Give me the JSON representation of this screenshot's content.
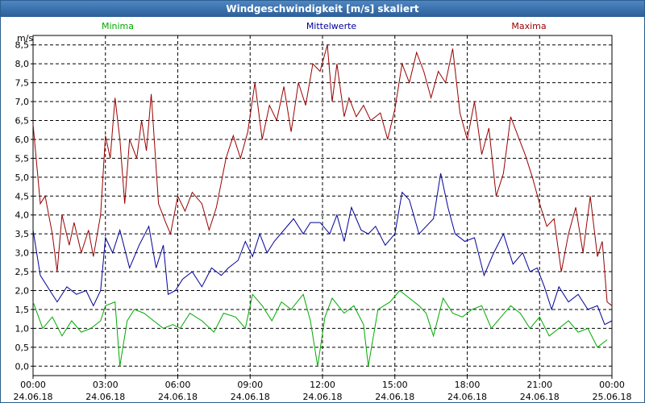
{
  "window": {
    "title": "Windgeschwindigkeit [m/s] skaliert"
  },
  "chart_data": {
    "type": "line",
    "title": "Windgeschwindigkeit [m/s] skaliert",
    "ylabel": "m/s",
    "ylim": [
      -0.25,
      8.75
    ],
    "yticks": [
      0,
      0.5,
      1,
      1.5,
      2,
      2.5,
      3,
      3.5,
      4,
      4.5,
      5,
      5.5,
      6,
      6.5,
      7,
      7.5,
      8,
      8.5
    ],
    "ytick_labels": [
      "0,0",
      "0,5",
      "1,0",
      "1,5",
      "2,0",
      "2,5",
      "3,0",
      "3,5",
      "4,0",
      "4,5",
      "5,0",
      "5,5",
      "6,0",
      "6,5",
      "7,0",
      "7,5",
      "8,0",
      "8,5"
    ],
    "xlim": [
      0,
      24
    ],
    "xticks": [
      0,
      3,
      6,
      9,
      12,
      15,
      18,
      21,
      24
    ],
    "xtick_labels": [
      {
        "time": "00:00",
        "date": "24.06.18"
      },
      {
        "time": "03:00",
        "date": "24.06.18"
      },
      {
        "time": "06:00",
        "date": "24.06.18"
      },
      {
        "time": "09:00",
        "date": "24.06.18"
      },
      {
        "time": "12:00",
        "date": "24.06.18"
      },
      {
        "time": "15:00",
        "date": "24.06.18"
      },
      {
        "time": "18:00",
        "date": "24.06.18"
      },
      {
        "time": "21:00",
        "date": "24.06.18"
      },
      {
        "time": "00:00",
        "date": "25.06.18"
      }
    ],
    "grid": true,
    "legend": "top",
    "series": [
      {
        "name": "Minima",
        "color": "#00aa00",
        "points": [
          [
            0.0,
            1.7
          ],
          [
            0.4,
            1.0
          ],
          [
            0.8,
            1.3
          ],
          [
            1.2,
            0.8
          ],
          [
            1.6,
            1.2
          ],
          [
            2.0,
            0.9
          ],
          [
            2.4,
            1.0
          ],
          [
            2.8,
            1.2
          ],
          [
            3.0,
            1.6
          ],
          [
            3.4,
            1.7
          ],
          [
            3.6,
            0.0
          ],
          [
            3.9,
            1.2
          ],
          [
            4.2,
            1.5
          ],
          [
            4.6,
            1.4
          ],
          [
            5.0,
            1.2
          ],
          [
            5.4,
            1.0
          ],
          [
            5.8,
            1.1
          ],
          [
            6.1,
            1.0
          ],
          [
            6.5,
            1.4
          ],
          [
            7.0,
            1.2
          ],
          [
            7.5,
            0.9
          ],
          [
            7.9,
            1.4
          ],
          [
            8.4,
            1.3
          ],
          [
            8.8,
            1.0
          ],
          [
            9.1,
            1.9
          ],
          [
            9.5,
            1.6
          ],
          [
            9.9,
            1.2
          ],
          [
            10.3,
            1.7
          ],
          [
            10.7,
            1.5
          ],
          [
            11.2,
            1.9
          ],
          [
            11.5,
            1.2
          ],
          [
            11.8,
            0.0
          ],
          [
            12.1,
            1.3
          ],
          [
            12.4,
            1.8
          ],
          [
            12.9,
            1.4
          ],
          [
            13.3,
            1.6
          ],
          [
            13.7,
            1.1
          ],
          [
            13.9,
            0.0
          ],
          [
            14.3,
            1.5
          ],
          [
            14.8,
            1.7
          ],
          [
            15.2,
            2.0
          ],
          [
            15.6,
            1.8
          ],
          [
            16.0,
            1.6
          ],
          [
            16.3,
            1.4
          ],
          [
            16.6,
            0.8
          ],
          [
            17.0,
            1.8
          ],
          [
            17.4,
            1.4
          ],
          [
            17.8,
            1.3
          ],
          [
            18.2,
            1.5
          ],
          [
            18.6,
            1.6
          ],
          [
            19.0,
            1.0
          ],
          [
            19.4,
            1.3
          ],
          [
            19.8,
            1.6
          ],
          [
            20.2,
            1.4
          ],
          [
            20.6,
            1.0
          ],
          [
            21.0,
            1.3
          ],
          [
            21.4,
            0.8
          ],
          [
            21.8,
            1.0
          ],
          [
            22.2,
            1.2
          ],
          [
            22.6,
            0.9
          ],
          [
            23.0,
            1.0
          ],
          [
            23.4,
            0.5
          ],
          [
            23.8,
            0.7
          ]
        ]
      },
      {
        "name": "Mittelwerte",
        "color": "#000099",
        "points": [
          [
            0.0,
            3.6
          ],
          [
            0.3,
            2.4
          ],
          [
            0.7,
            2.0
          ],
          [
            1.0,
            1.7
          ],
          [
            1.4,
            2.1
          ],
          [
            1.8,
            1.9
          ],
          [
            2.2,
            2.0
          ],
          [
            2.5,
            1.6
          ],
          [
            2.8,
            2.0
          ],
          [
            3.0,
            3.4
          ],
          [
            3.3,
            3.0
          ],
          [
            3.6,
            3.6
          ],
          [
            4.0,
            2.6
          ],
          [
            4.4,
            3.2
          ],
          [
            4.8,
            3.7
          ],
          [
            5.1,
            2.6
          ],
          [
            5.4,
            3.2
          ],
          [
            5.6,
            1.9
          ],
          [
            5.9,
            2.0
          ],
          [
            6.2,
            2.3
          ],
          [
            6.6,
            2.5
          ],
          [
            7.0,
            2.1
          ],
          [
            7.4,
            2.6
          ],
          [
            7.8,
            2.4
          ],
          [
            8.1,
            2.6
          ],
          [
            8.5,
            2.8
          ],
          [
            8.8,
            3.3
          ],
          [
            9.1,
            2.9
          ],
          [
            9.4,
            3.5
          ],
          [
            9.7,
            3.0
          ],
          [
            10.0,
            3.3
          ],
          [
            10.4,
            3.6
          ],
          [
            10.8,
            3.9
          ],
          [
            11.2,
            3.5
          ],
          [
            11.5,
            3.8
          ],
          [
            11.9,
            3.8
          ],
          [
            12.3,
            3.5
          ],
          [
            12.6,
            4.0
          ],
          [
            12.9,
            3.3
          ],
          [
            13.2,
            4.2
          ],
          [
            13.6,
            3.6
          ],
          [
            13.9,
            3.5
          ],
          [
            14.2,
            3.7
          ],
          [
            14.6,
            3.2
          ],
          [
            15.0,
            3.5
          ],
          [
            15.3,
            4.6
          ],
          [
            15.6,
            4.4
          ],
          [
            16.0,
            3.5
          ],
          [
            16.3,
            3.7
          ],
          [
            16.6,
            3.9
          ],
          [
            16.9,
            5.1
          ],
          [
            17.2,
            4.2
          ],
          [
            17.5,
            3.5
          ],
          [
            17.9,
            3.3
          ],
          [
            18.3,
            3.4
          ],
          [
            18.7,
            2.4
          ],
          [
            19.1,
            3.0
          ],
          [
            19.5,
            3.5
          ],
          [
            19.9,
            2.7
          ],
          [
            20.3,
            3.0
          ],
          [
            20.6,
            2.5
          ],
          [
            20.9,
            2.6
          ],
          [
            21.2,
            2.1
          ],
          [
            21.5,
            1.5
          ],
          [
            21.8,
            2.1
          ],
          [
            22.2,
            1.7
          ],
          [
            22.6,
            1.9
          ],
          [
            23.0,
            1.5
          ],
          [
            23.4,
            1.6
          ],
          [
            23.7,
            1.1
          ],
          [
            24.0,
            1.2
          ]
        ]
      },
      {
        "name": "Maxima",
        "color": "#990000",
        "points": [
          [
            0.0,
            6.4
          ],
          [
            0.3,
            4.3
          ],
          [
            0.5,
            4.5
          ],
          [
            0.8,
            3.5
          ],
          [
            1.0,
            2.5
          ],
          [
            1.2,
            4.0
          ],
          [
            1.5,
            3.2
          ],
          [
            1.7,
            3.8
          ],
          [
            2.0,
            3.0
          ],
          [
            2.3,
            3.6
          ],
          [
            2.5,
            2.9
          ],
          [
            2.8,
            4.0
          ],
          [
            3.0,
            6.1
          ],
          [
            3.2,
            5.5
          ],
          [
            3.4,
            7.1
          ],
          [
            3.6,
            6.0
          ],
          [
            3.8,
            4.3
          ],
          [
            4.0,
            6.0
          ],
          [
            4.3,
            5.5
          ],
          [
            4.5,
            6.5
          ],
          [
            4.7,
            5.7
          ],
          [
            4.9,
            7.2
          ],
          [
            5.2,
            4.3
          ],
          [
            5.5,
            3.8
          ],
          [
            5.7,
            3.5
          ],
          [
            6.0,
            4.5
          ],
          [
            6.3,
            4.1
          ],
          [
            6.6,
            4.6
          ],
          [
            7.0,
            4.3
          ],
          [
            7.3,
            3.6
          ],
          [
            7.6,
            4.2
          ],
          [
            8.0,
            5.5
          ],
          [
            8.3,
            6.1
          ],
          [
            8.6,
            5.5
          ],
          [
            8.9,
            6.2
          ],
          [
            9.2,
            7.5
          ],
          [
            9.5,
            6.0
          ],
          [
            9.8,
            6.9
          ],
          [
            10.1,
            6.5
          ],
          [
            10.4,
            7.4
          ],
          [
            10.7,
            6.2
          ],
          [
            11.0,
            7.5
          ],
          [
            11.3,
            6.9
          ],
          [
            11.6,
            8.0
          ],
          [
            11.9,
            7.8
          ],
          [
            12.2,
            8.5
          ],
          [
            12.4,
            7.0
          ],
          [
            12.6,
            8.0
          ],
          [
            12.9,
            6.6
          ],
          [
            13.1,
            7.1
          ],
          [
            13.4,
            6.6
          ],
          [
            13.7,
            6.9
          ],
          [
            14.0,
            6.5
          ],
          [
            14.4,
            6.7
          ],
          [
            14.7,
            6.0
          ],
          [
            15.0,
            6.8
          ],
          [
            15.3,
            8.0
          ],
          [
            15.6,
            7.5
          ],
          [
            15.9,
            8.3
          ],
          [
            16.2,
            7.8
          ],
          [
            16.5,
            7.1
          ],
          [
            16.8,
            7.8
          ],
          [
            17.1,
            7.5
          ],
          [
            17.4,
            8.4
          ],
          [
            17.7,
            6.7
          ],
          [
            18.0,
            6.0
          ],
          [
            18.3,
            7.0
          ],
          [
            18.6,
            5.6
          ],
          [
            18.9,
            6.3
          ],
          [
            19.2,
            4.5
          ],
          [
            19.5,
            5.1
          ],
          [
            19.8,
            6.6
          ],
          [
            20.1,
            6.1
          ],
          [
            20.4,
            5.6
          ],
          [
            20.7,
            5.0
          ],
          [
            21.0,
            4.3
          ],
          [
            21.3,
            3.7
          ],
          [
            21.6,
            3.9
          ],
          [
            21.9,
            2.5
          ],
          [
            22.2,
            3.5
          ],
          [
            22.5,
            4.2
          ],
          [
            22.8,
            3.0
          ],
          [
            23.1,
            4.5
          ],
          [
            23.4,
            2.9
          ],
          [
            23.6,
            3.3
          ],
          [
            23.8,
            1.7
          ],
          [
            24.0,
            1.6
          ]
        ]
      }
    ]
  }
}
